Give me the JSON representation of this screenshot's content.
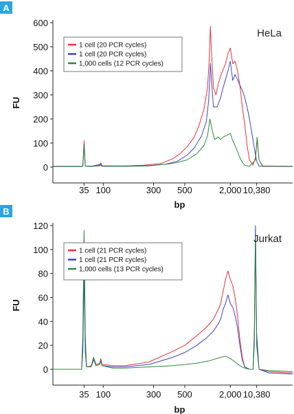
{
  "chart_data": [
    {
      "panel_label": "A",
      "type": "line",
      "cell_line": "HeLa",
      "ylabel": "FU",
      "xlabel": "bp",
      "ylim": [
        0,
        600
      ],
      "yticks": [
        "0",
        "100",
        "200",
        "300",
        "400",
        "500",
        "600"
      ],
      "xticks": [
        {
          "label": "35",
          "pos": 0.13
        },
        {
          "label": "100",
          "pos": 0.21
        },
        {
          "label": "300",
          "pos": 0.42
        },
        {
          "label": "500",
          "pos": 0.55
        },
        {
          "label": "2,000",
          "pos": 0.74
        },
        {
          "label": "10,380",
          "pos": 0.85
        }
      ],
      "grid": false,
      "legend_position": "top-left",
      "series": [
        {
          "name": "1 cell (20 PCR cycles)",
          "color": "#e8303a",
          "points": [
            [
              0,
              3
            ],
            [
              0.12,
              3
            ],
            [
              0.125,
              5
            ],
            [
              0.13,
              110
            ],
            [
              0.135,
              5
            ],
            [
              0.16,
              3
            ],
            [
              0.195,
              5
            ],
            [
              0.2,
              18
            ],
            [
              0.205,
              5
            ],
            [
              0.3,
              5
            ],
            [
              0.38,
              8
            ],
            [
              0.45,
              15
            ],
            [
              0.5,
              35
            ],
            [
              0.53,
              55
            ],
            [
              0.56,
              85
            ],
            [
              0.59,
              125
            ],
            [
              0.61,
              175
            ],
            [
              0.63,
              240
            ],
            [
              0.645,
              330
            ],
            [
              0.652,
              440
            ],
            [
              0.657,
              585
            ],
            [
              0.662,
              470
            ],
            [
              0.67,
              330
            ],
            [
              0.68,
              300
            ],
            [
              0.69,
              345
            ],
            [
              0.7,
              380
            ],
            [
              0.71,
              405
            ],
            [
              0.72,
              430
            ],
            [
              0.73,
              470
            ],
            [
              0.74,
              495
            ],
            [
              0.75,
              430
            ],
            [
              0.76,
              440
            ],
            [
              0.77,
              400
            ],
            [
              0.78,
              340
            ],
            [
              0.79,
              250
            ],
            [
              0.8,
              180
            ],
            [
              0.81,
              90
            ],
            [
              0.82,
              30
            ],
            [
              0.835,
              8
            ],
            [
              0.845,
              40
            ],
            [
              0.852,
              115
            ],
            [
              0.86,
              30
            ],
            [
              0.875,
              5
            ],
            [
              1,
              3
            ]
          ]
        },
        {
          "name": "1 cell (20 PCR cycles)",
          "color": "#3a43c8",
          "points": [
            [
              0,
              3
            ],
            [
              0.12,
              3
            ],
            [
              0.125,
              5
            ],
            [
              0.13,
              95
            ],
            [
              0.135,
              5
            ],
            [
              0.16,
              3
            ],
            [
              0.2,
              12
            ],
            [
              0.205,
              5
            ],
            [
              0.3,
              4
            ],
            [
              0.4,
              6
            ],
            [
              0.47,
              12
            ],
            [
              0.52,
              25
            ],
            [
              0.56,
              50
            ],
            [
              0.59,
              80
            ],
            [
              0.62,
              130
            ],
            [
              0.64,
              190
            ],
            [
              0.65,
              280
            ],
            [
              0.657,
              430
            ],
            [
              0.663,
              340
            ],
            [
              0.67,
              250
            ],
            [
              0.685,
              250
            ],
            [
              0.7,
              290
            ],
            [
              0.71,
              330
            ],
            [
              0.72,
              365
            ],
            [
              0.73,
              400
            ],
            [
              0.74,
              440
            ],
            [
              0.75,
              360
            ],
            [
              0.76,
              385
            ],
            [
              0.77,
              365
            ],
            [
              0.78,
              340
            ],
            [
              0.79,
              320
            ],
            [
              0.8,
              290
            ],
            [
              0.81,
              250
            ],
            [
              0.82,
              200
            ],
            [
              0.83,
              140
            ],
            [
              0.84,
              80
            ],
            [
              0.85,
              25
            ],
            [
              0.86,
              5
            ],
            [
              0.875,
              3
            ],
            [
              1,
              3
            ]
          ]
        },
        {
          "name": "1,000 cells (12 PCR cycles)",
          "color": "#2a8a3a",
          "points": [
            [
              0,
              2
            ],
            [
              0.12,
              2
            ],
            [
              0.125,
              4
            ],
            [
              0.13,
              90
            ],
            [
              0.135,
              4
            ],
            [
              0.16,
              2
            ],
            [
              0.2,
              8
            ],
            [
              0.205,
              3
            ],
            [
              0.3,
              3
            ],
            [
              0.4,
              5
            ],
            [
              0.5,
              15
            ],
            [
              0.56,
              30
            ],
            [
              0.6,
              55
            ],
            [
              0.63,
              90
            ],
            [
              0.645,
              130
            ],
            [
              0.655,
              200
            ],
            [
              0.665,
              150
            ],
            [
              0.675,
              115
            ],
            [
              0.69,
              125
            ],
            [
              0.7,
              115
            ],
            [
              0.71,
              125
            ],
            [
              0.72,
              130
            ],
            [
              0.73,
              135
            ],
            [
              0.74,
              140
            ],
            [
              0.75,
              110
            ],
            [
              0.76,
              90
            ],
            [
              0.77,
              65
            ],
            [
              0.78,
              40
            ],
            [
              0.79,
              20
            ],
            [
              0.8,
              8
            ],
            [
              0.82,
              3
            ],
            [
              0.845,
              30
            ],
            [
              0.852,
              125
            ],
            [
              0.86,
              30
            ],
            [
              0.875,
              3
            ],
            [
              1,
              2
            ]
          ]
        }
      ]
    },
    {
      "panel_label": "B",
      "type": "line",
      "cell_line": "Jurkat",
      "ylabel": "FU",
      "xlabel": "bp",
      "ylim": [
        -8,
        120
      ],
      "yticks": [
        "0",
        "20",
        "40",
        "60",
        "80",
        "100",
        "120"
      ],
      "xticks": [
        {
          "label": "35",
          "pos": 0.13
        },
        {
          "label": "100",
          "pos": 0.21
        },
        {
          "label": "300",
          "pos": 0.42
        },
        {
          "label": "500",
          "pos": 0.55
        },
        {
          "label": "2,000",
          "pos": 0.74
        },
        {
          "label": "10,380",
          "pos": 0.85
        }
      ],
      "grid": false,
      "legend_position": "top-left",
      "series": [
        {
          "name": "1 cell (21 PCR cycles)",
          "color": "#e8303a",
          "points": [
            [
              0,
              0
            ],
            [
              0.1,
              0
            ],
            [
              0.12,
              0
            ],
            [
              0.125,
              20
            ],
            [
              0.13,
              112
            ],
            [
              0.135,
              20
            ],
            [
              0.14,
              2
            ],
            [
              0.16,
              3
            ],
            [
              0.17,
              10
            ],
            [
              0.18,
              4
            ],
            [
              0.195,
              5
            ],
            [
              0.2,
              9
            ],
            [
              0.205,
              4
            ],
            [
              0.25,
              3
            ],
            [
              0.3,
              3
            ],
            [
              0.4,
              6
            ],
            [
              0.5,
              15
            ],
            [
              0.55,
              20
            ],
            [
              0.6,
              28
            ],
            [
              0.64,
              35
            ],
            [
              0.67,
              42
            ],
            [
              0.69,
              50
            ],
            [
              0.7,
              55
            ],
            [
              0.71,
              65
            ],
            [
              0.72,
              75
            ],
            [
              0.73,
              82
            ],
            [
              0.74,
              75
            ],
            [
              0.75,
              70
            ],
            [
              0.76,
              60
            ],
            [
              0.77,
              45
            ],
            [
              0.78,
              25
            ],
            [
              0.79,
              10
            ],
            [
              0.8,
              2
            ],
            [
              0.82,
              0
            ],
            [
              0.835,
              0
            ],
            [
              0.84,
              25
            ],
            [
              0.845,
              115
            ],
            [
              0.85,
              25
            ],
            [
              0.86,
              0
            ],
            [
              0.9,
              -2
            ],
            [
              1,
              -3
            ]
          ]
        },
        {
          "name": "1 cell (21 PCR cycles)",
          "color": "#3a43c8",
          "points": [
            [
              0,
              0
            ],
            [
              0.1,
              0
            ],
            [
              0.12,
              0
            ],
            [
              0.125,
              15
            ],
            [
              0.13,
              80
            ],
            [
              0.135,
              15
            ],
            [
              0.14,
              2
            ],
            [
              0.16,
              2
            ],
            [
              0.17,
              8
            ],
            [
              0.18,
              3
            ],
            [
              0.195,
              4
            ],
            [
              0.2,
              7
            ],
            [
              0.205,
              3
            ],
            [
              0.25,
              2
            ],
            [
              0.3,
              2
            ],
            [
              0.4,
              4
            ],
            [
              0.5,
              10
            ],
            [
              0.55,
              14
            ],
            [
              0.6,
              20
            ],
            [
              0.64,
              26
            ],
            [
              0.67,
              32
            ],
            [
              0.69,
              38
            ],
            [
              0.7,
              42
            ],
            [
              0.71,
              50
            ],
            [
              0.72,
              55
            ],
            [
              0.73,
              62
            ],
            [
              0.74,
              55
            ],
            [
              0.75,
              52
            ],
            [
              0.76,
              45
            ],
            [
              0.77,
              35
            ],
            [
              0.78,
              20
            ],
            [
              0.79,
              8
            ],
            [
              0.8,
              2
            ],
            [
              0.82,
              0
            ],
            [
              0.835,
              0
            ],
            [
              0.84,
              30
            ],
            [
              0.845,
              120
            ],
            [
              0.85,
              30
            ],
            [
              0.86,
              0
            ],
            [
              0.9,
              -3
            ],
            [
              1,
              -4
            ]
          ]
        },
        {
          "name": "1,000 cells (13 PCR cycles)",
          "color": "#2a8a3a",
          "points": [
            [
              0,
              0
            ],
            [
              0.1,
              0
            ],
            [
              0.12,
              0
            ],
            [
              0.125,
              30
            ],
            [
              0.13,
              116
            ],
            [
              0.135,
              30
            ],
            [
              0.14,
              2
            ],
            [
              0.16,
              2
            ],
            [
              0.17,
              10
            ],
            [
              0.18,
              3
            ],
            [
              0.195,
              4
            ],
            [
              0.2,
              8
            ],
            [
              0.205,
              3
            ],
            [
              0.25,
              1
            ],
            [
              0.3,
              1
            ],
            [
              0.4,
              2
            ],
            [
              0.5,
              3
            ],
            [
              0.6,
              5
            ],
            [
              0.65,
              7
            ],
            [
              0.7,
              10
            ],
            [
              0.72,
              11
            ],
            [
              0.74,
              9
            ],
            [
              0.76,
              6
            ],
            [
              0.78,
              3
            ],
            [
              0.8,
              1
            ],
            [
              0.82,
              0
            ],
            [
              0.835,
              0
            ],
            [
              0.84,
              20
            ],
            [
              0.845,
              110
            ],
            [
              0.85,
              20
            ],
            [
              0.86,
              0
            ],
            [
              0.9,
              -1
            ],
            [
              1,
              -2
            ]
          ]
        }
      ]
    }
  ]
}
